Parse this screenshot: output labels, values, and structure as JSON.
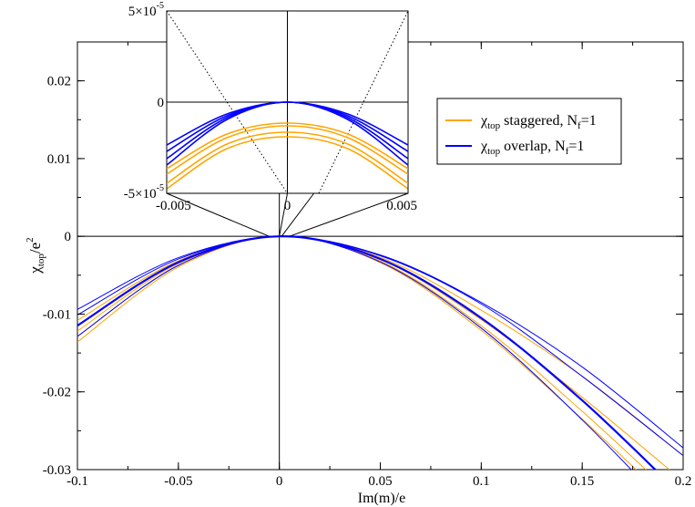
{
  "chart_data": [
    {
      "type": "line",
      "title": "",
      "xlabel": "Im(m)/e",
      "ylabel_main": "χ",
      "ylabel_sub": "top",
      "ylabel_tail": "/e",
      "ylabel_sup": "2",
      "xlim": [
        -0.1,
        0.2
      ],
      "ylim": [
        -0.03,
        0.025
      ],
      "xticks": [
        {
          "v": -0.1,
          "label": "-0.1"
        },
        {
          "v": -0.05,
          "label": "-0.05"
        },
        {
          "v": 0,
          "label": "0"
        },
        {
          "v": 0.05,
          "label": "0.05"
        },
        {
          "v": 0.1,
          "label": "0.1"
        },
        {
          "v": 0.15,
          "label": "0.15"
        },
        {
          "v": 0.2,
          "label": "0.2"
        }
      ],
      "yticks": [
        {
          "v": -0.03,
          "label": "-0.03"
        },
        {
          "v": -0.02,
          "label": "-0.02"
        },
        {
          "v": -0.01,
          "label": "-0.01"
        },
        {
          "v": 0,
          "label": "0"
        },
        {
          "v": 0.01,
          "label": "0.01"
        },
        {
          "v": 0.02,
          "label": "0.02"
        }
      ],
      "legend": {
        "placement": "right",
        "entries": [
          {
            "main": "χ",
            "sub": "top",
            "text": " staggered, N",
            "sub2": "f",
            "tail": "=1",
            "color": "#ffa500"
          },
          {
            "main": "χ",
            "sub": "top",
            "text": " overlap, N",
            "sub2": "f",
            "tail": "=1",
            "color": "#0000ff"
          }
        ]
      },
      "series": [
        {
          "color": "#ffa500",
          "width": 1.0,
          "x": [
            -0.1,
            -0.05,
            0,
            0.05,
            0.1,
            0.15,
            0.2
          ],
          "y": [
            -0.01358,
            -0.00394,
            0,
            -0.00337,
            -0.0121,
            -0.0235,
            -0.0358
          ]
        },
        {
          "color": "#ffa500",
          "width": 1.0,
          "x": [
            -0.1,
            -0.05,
            0,
            0.05,
            0.1,
            0.15,
            0.2
          ],
          "y": [
            -0.01287,
            -0.00373,
            0,
            -0.00319,
            -0.01151,
            -0.0225,
            -0.0345
          ]
        },
        {
          "color": "#ffa500",
          "width": 1.0,
          "x": [
            -0.1,
            -0.05,
            0,
            0.05,
            0.1,
            0.15,
            0.2
          ],
          "y": [
            -0.01217,
            -0.0035,
            0,
            -0.00299,
            -0.01072,
            -0.0207,
            -0.0315
          ]
        },
        {
          "color": "#ffa500",
          "width": 1.0,
          "x": [
            -0.1,
            -0.05,
            0,
            0.05,
            0.1,
            0.15,
            0.2
          ],
          "y": [
            -0.0108,
            -0.00316,
            0,
            -0.00271,
            -0.0095,
            -0.018,
            -0.0282
          ]
        },
        {
          "color": "#0000ff",
          "width": 1.0,
          "x": [
            -0.1,
            -0.05,
            0,
            0.05,
            0.1,
            0.15,
            0.2
          ],
          "y": [
            -0.01287,
            -0.00373,
            0,
            -0.0033,
            -0.0118,
            -0.0236,
            -0.037
          ]
        },
        {
          "color": "#0000ff",
          "width": 2.2,
          "x": [
            -0.1,
            -0.05,
            0,
            0.05,
            0.1,
            0.15,
            0.2
          ],
          "y": [
            -0.01148,
            -0.00333,
            0,
            -0.00291,
            -0.0105,
            -0.0211,
            -0.0335
          ]
        },
        {
          "color": "#0000ff",
          "width": 1.0,
          "x": [
            -0.1,
            -0.05,
            0,
            0.05,
            0.1,
            0.15,
            0.2
          ],
          "y": [
            -0.0101,
            -0.00292,
            0,
            -0.0025,
            -0.0087,
            -0.018,
            -0.0282
          ]
        },
        {
          "color": "#0000ff",
          "width": 1.0,
          "x": [
            -0.1,
            -0.05,
            0,
            0.05,
            0.1,
            0.15,
            0.2
          ],
          "y": [
            -0.0094,
            -0.00274,
            0,
            -0.0024,
            -0.0085,
            -0.0168,
            -0.0272
          ]
        }
      ]
    },
    {
      "type": "line",
      "title": "",
      "xlabel": "",
      "ylabel": "",
      "xlim": [
        -0.005,
        0.005
      ],
      "ylim": [
        -5e-05,
        5e-05
      ],
      "xticks": [
        {
          "v": -0.005,
          "label": "-0.005"
        },
        {
          "v": 0,
          "label": "0"
        },
        {
          "v": 0.005,
          "label": "0.005"
        }
      ],
      "yticks": [
        {
          "v": -5e-05,
          "base": "-5×10",
          "exp": "-5"
        },
        {
          "v": 0,
          "base": "0",
          "exp": ""
        },
        {
          "v": 5e-05,
          "base": "5×10",
          "exp": "-5"
        }
      ],
      "series": [
        {
          "color": "#ffa500",
          "width": 1.0,
          "x": [
            -0.005,
            -0.0025,
            0,
            0.0025,
            0.005
          ],
          "y": [
            -3.65e-05,
            -1.75e-05,
            -1.15e-05,
            -1.75e-05,
            -3.65e-05
          ]
        },
        {
          "color": "#ffa500",
          "width": 1.0,
          "x": [
            -0.005,
            -0.0025,
            0,
            0.0025,
            0.005
          ],
          "y": [
            -3.95e-05,
            -1.95e-05,
            -1.3e-05,
            -1.95e-05,
            -3.95e-05
          ]
        },
        {
          "color": "#ffa500",
          "width": 1.0,
          "x": [
            -0.005,
            -0.0025,
            0,
            0.0025,
            0.005
          ],
          "y": [
            -4.45e-05,
            -2.3e-05,
            -1.65e-05,
            -2.3e-05,
            -4.45e-05
          ]
        },
        {
          "color": "#ffa500",
          "width": 1.0,
          "x": [
            -0.005,
            -0.0025,
            0,
            0.0025,
            0.005
          ],
          "y": [
            -4.75e-05,
            -2.55e-05,
            -1.9e-05,
            -2.55e-05,
            -4.75e-05
          ]
        },
        {
          "color": "#0000ff",
          "width": 1.0,
          "x": [
            -0.005,
            -0.0025,
            0,
            0.0025,
            0.005
          ],
          "y": [
            -2.35e-05,
            -6.5e-06,
            0,
            -6.5e-06,
            -2.35e-05
          ]
        },
        {
          "color": "#0000ff",
          "width": 1.0,
          "x": [
            -0.005,
            -0.0025,
            0,
            0.0025,
            0.005
          ],
          "y": [
            -2.7e-05,
            -7.5e-06,
            0,
            -7.5e-06,
            -2.7e-05
          ]
        },
        {
          "color": "#0000ff",
          "width": 1.0,
          "x": [
            -0.005,
            -0.0025,
            0,
            0.0025,
            0.005
          ],
          "y": [
            -3.1e-05,
            -8.5e-06,
            0,
            -8.5e-06,
            -3.1e-05
          ]
        },
        {
          "color": "#0000ff",
          "width": 1.0,
          "x": [
            -0.005,
            -0.0025,
            0,
            0.0025,
            0.005
          ],
          "y": [
            -3.45e-05,
            -9.5e-06,
            0,
            -9.5e-06,
            -3.45e-05
          ]
        }
      ],
      "dotted_lines": [
        {
          "x": [
            -0.005,
            0.0
          ],
          "y": [
            5e-05,
            -5e-05
          ]
        },
        {
          "x": [
            0.0013,
            0.005
          ],
          "y": [
            -5e-05,
            5e-05
          ]
        }
      ]
    }
  ]
}
